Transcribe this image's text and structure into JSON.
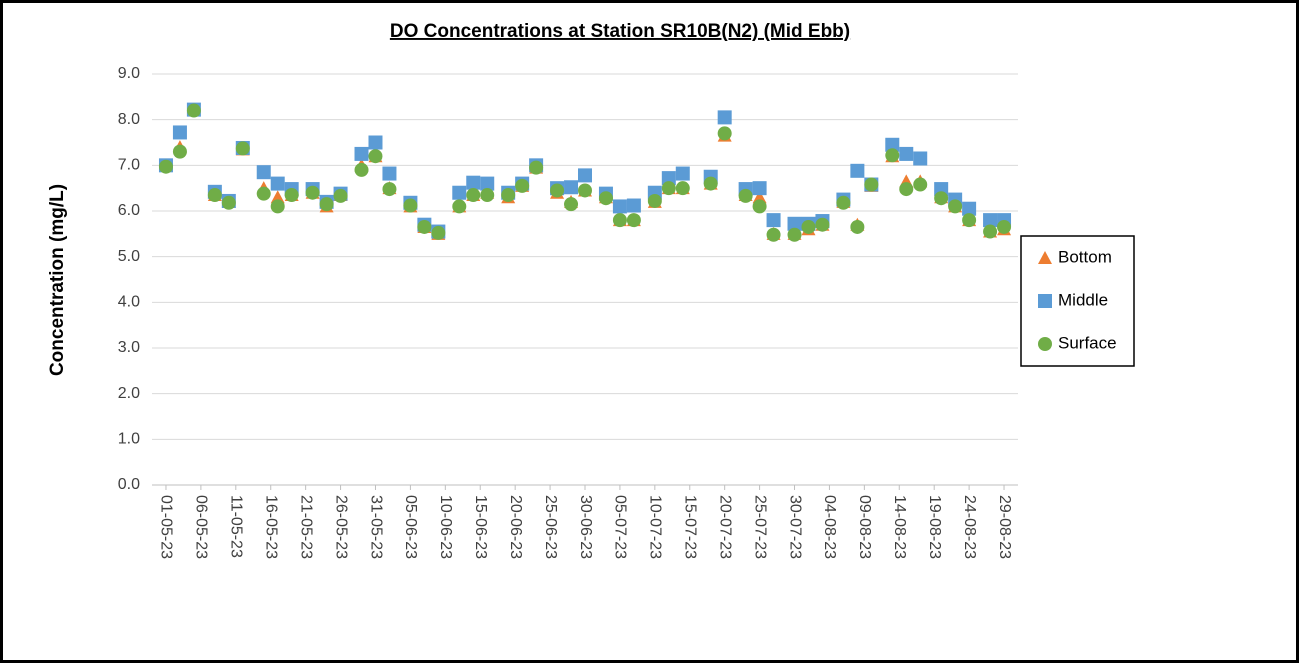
{
  "chart_data": {
    "type": "scatter",
    "title": "DO Concentrations at Station SR10B(N2) (Mid Ebb)",
    "y_label": "Concentration (mg/L)",
    "x": [
      "01-05-23",
      "03-05-23",
      "05-05-23",
      "08-05-23",
      "10-05-23",
      "12-05-23",
      "15-05-23",
      "17-05-23",
      "19-05-23",
      "22-05-23",
      "24-05-23",
      "26-05-23",
      "29-05-23",
      "31-05-23",
      "02-06-23",
      "05-06-23",
      "07-06-23",
      "09-06-23",
      "12-06-23",
      "14-06-23",
      "16-06-23",
      "19-06-23",
      "21-06-23",
      "23-06-23",
      "26-06-23",
      "28-06-23",
      "30-06-23",
      "03-07-23",
      "05-07-23",
      "07-07-23",
      "10-07-23",
      "12-07-23",
      "14-07-23",
      "18-07-23",
      "20-07-23",
      "23-07-23",
      "25-07-23",
      "27-07-23",
      "30-07-23",
      "01-08-23",
      "03-08-23",
      "06-08-23",
      "08-08-23",
      "10-08-23",
      "13-08-23",
      "15-08-23",
      "17-08-23",
      "20-08-23",
      "22-08-23",
      "24-08-23",
      "27-08-23",
      "29-08-23"
    ],
    "series": [
      {
        "name": "Bottom",
        "color": "#ed7d31",
        "marker": "triangle",
        "values": [
          7.0,
          7.4,
          8.2,
          6.35,
          6.2,
          7.35,
          6.5,
          6.3,
          6.35,
          6.4,
          6.1,
          6.35,
          7.0,
          7.2,
          6.5,
          6.1,
          5.65,
          5.5,
          6.1,
          6.35,
          6.4,
          6.3,
          6.55,
          6.95,
          6.4,
          6.2,
          6.45,
          6.3,
          5.8,
          5.8,
          6.2,
          6.5,
          6.5,
          6.6,
          7.65,
          6.35,
          6.3,
          5.5,
          5.5,
          5.6,
          5.7,
          6.2,
          5.7,
          6.55,
          7.2,
          6.65,
          6.65,
          6.3,
          6.1,
          5.8,
          5.55,
          5.6
        ]
      },
      {
        "name": "Middle",
        "color": "#5b9bd5",
        "marker": "square",
        "values": [
          7.0,
          7.72,
          8.22,
          6.42,
          6.22,
          7.38,
          6.85,
          6.6,
          6.48,
          6.48,
          6.2,
          6.38,
          7.25,
          7.5,
          6.82,
          6.18,
          5.7,
          5.55,
          6.4,
          6.62,
          6.6,
          6.4,
          6.6,
          7.0,
          6.5,
          6.52,
          6.78,
          6.38,
          6.1,
          6.12,
          6.4,
          6.72,
          6.82,
          6.75,
          8.05,
          6.48,
          6.5,
          5.8,
          5.72,
          5.72,
          5.78,
          6.25,
          6.88,
          6.58,
          7.45,
          7.25,
          7.15,
          6.48,
          6.25,
          6.05,
          5.8,
          5.8
        ]
      },
      {
        "name": "Surface",
        "color": "#70ad47",
        "marker": "circle",
        "values": [
          6.97,
          7.3,
          8.2,
          6.35,
          6.18,
          7.37,
          6.38,
          6.1,
          6.35,
          6.4,
          6.15,
          6.33,
          6.9,
          7.2,
          6.48,
          6.12,
          5.65,
          5.52,
          6.1,
          6.35,
          6.35,
          6.35,
          6.55,
          6.95,
          6.45,
          6.15,
          6.45,
          6.28,
          5.8,
          5.8,
          6.22,
          6.5,
          6.5,
          6.6,
          7.7,
          6.33,
          6.1,
          5.48,
          5.48,
          5.65,
          5.7,
          6.18,
          5.65,
          6.58,
          7.22,
          6.48,
          6.58,
          6.28,
          6.1,
          5.8,
          5.55,
          5.65
        ]
      }
    ],
    "xlim": [
      "29-04-23",
      "31-08-23"
    ],
    "xticks": [
      "01-05-23",
      "06-05-23",
      "11-05-23",
      "16-05-23",
      "21-05-23",
      "26-05-23",
      "31-05-23",
      "05-06-23",
      "10-06-23",
      "15-06-23",
      "20-06-23",
      "25-06-23",
      "30-06-23",
      "05-07-23",
      "10-07-23",
      "15-07-23",
      "20-07-23",
      "25-07-23",
      "30-07-23",
      "04-08-23",
      "09-08-23",
      "14-08-23",
      "19-08-23",
      "24-08-23",
      "29-08-23"
    ],
    "ylim": [
      0,
      9
    ],
    "yticks": [
      {
        "value": 0,
        "label": "0.0"
      },
      {
        "value": 1,
        "label": "1.0"
      },
      {
        "value": 2,
        "label": "2.0"
      },
      {
        "value": 3,
        "label": "3.0"
      },
      {
        "value": 4,
        "label": "4.0"
      },
      {
        "value": 5,
        "label": "5.0"
      },
      {
        "value": 6,
        "label": "6.0"
      },
      {
        "value": 7,
        "label": "7.0"
      },
      {
        "value": 8,
        "label": "8.0"
      },
      {
        "value": 9,
        "label": "9.0"
      }
    ],
    "grid": true,
    "legend": "right"
  }
}
